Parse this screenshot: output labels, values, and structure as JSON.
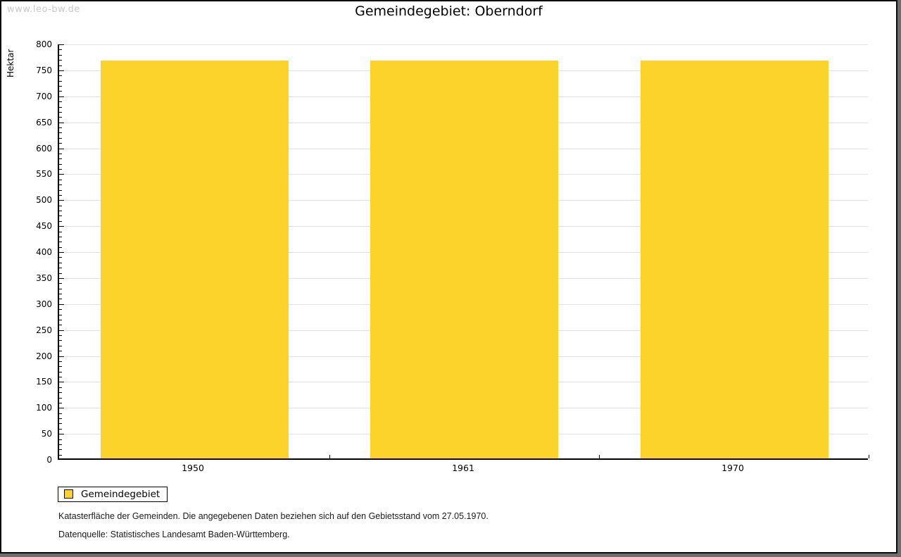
{
  "watermark": "www.leo-bw.de",
  "title": "Gemeindegebiet: Oberndorf",
  "chart_data": {
    "type": "bar",
    "categories": [
      "1950",
      "1961",
      "1970"
    ],
    "series": [
      {
        "name": "Gemeindegebiet",
        "values": [
          766,
          766,
          766
        ]
      }
    ],
    "title": "Gemeindegebiet: Oberndorf",
    "xlabel": "",
    "ylabel": "Hektar",
    "ylim": [
      0,
      800
    ],
    "y_major_step": 50,
    "y_minor_step": 10,
    "grid": true,
    "legend_position": "bottom-left",
    "bar_color": "#fcd32b"
  },
  "legend": {
    "items": [
      {
        "label": "Gemeindegebiet",
        "color": "#fcd32b"
      }
    ]
  },
  "footer": {
    "line1": "Katasterfläche der Gemeinden. Die angegebenen Daten beziehen sich auf den Gebietsstand vom 27.05.1970.",
    "line2": "Datenquelle: Statistisches Landesamt Baden-Württemberg."
  },
  "colors": {
    "bar": "#fcd32b",
    "grid": "#e0e0e0",
    "axis": "#000000",
    "watermark": "#c9c9c9",
    "frame_shadow": "#6e6e6e"
  }
}
